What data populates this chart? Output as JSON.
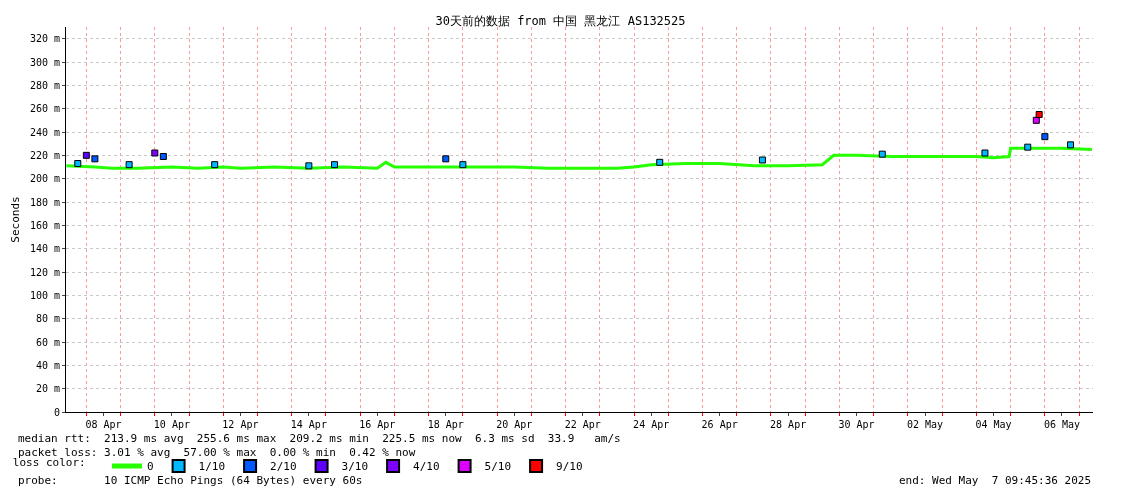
{
  "chart_data": {
    "type": "line",
    "title": "30天前的数据 from 中国 黑龙江 AS132525",
    "ylabel": "Seconds",
    "legend_title": "loss color:",
    "legend": "bottom",
    "grid": true,
    "line_style": "solid",
    "xlim": [
      "2025-04-07T09:45",
      "2025-05-07T09:45"
    ],
    "xticks": [
      {
        "value": "2025-04-08T00:00",
        "label": null
      },
      {
        "value": "2025-04-08T12:00",
        "label": "08 Apr"
      },
      {
        "value": "2025-04-09T00:00",
        "label": null
      },
      {
        "value": "2025-04-10T00:00",
        "label": null
      },
      {
        "value": "2025-04-10T12:00",
        "label": "10 Apr"
      },
      {
        "value": "2025-04-11T00:00",
        "label": null
      },
      {
        "value": "2025-04-12T00:00",
        "label": null
      },
      {
        "value": "2025-04-12T12:00",
        "label": "12 Apr"
      },
      {
        "value": "2025-04-13T00:00",
        "label": null
      },
      {
        "value": "2025-04-14T00:00",
        "label": null
      },
      {
        "value": "2025-04-14T12:00",
        "label": "14 Apr"
      },
      {
        "value": "2025-04-15T00:00",
        "label": null
      },
      {
        "value": "2025-04-16T00:00",
        "label": null
      },
      {
        "value": "2025-04-16T12:00",
        "label": "16 Apr"
      },
      {
        "value": "2025-04-17T00:00",
        "label": null
      },
      {
        "value": "2025-04-18T00:00",
        "label": null
      },
      {
        "value": "2025-04-18T12:00",
        "label": "18 Apr"
      },
      {
        "value": "2025-04-19T00:00",
        "label": null
      },
      {
        "value": "2025-04-20T00:00",
        "label": null
      },
      {
        "value": "2025-04-20T12:00",
        "label": "20 Apr"
      },
      {
        "value": "2025-04-21T00:00",
        "label": null
      },
      {
        "value": "2025-04-22T00:00",
        "label": null
      },
      {
        "value": "2025-04-22T12:00",
        "label": "22 Apr"
      },
      {
        "value": "2025-04-23T00:00",
        "label": null
      },
      {
        "value": "2025-04-24T00:00",
        "label": null
      },
      {
        "value": "2025-04-24T12:00",
        "label": "24 Apr"
      },
      {
        "value": "2025-04-25T00:00",
        "label": null
      },
      {
        "value": "2025-04-26T00:00",
        "label": null
      },
      {
        "value": "2025-04-26T12:00",
        "label": "26 Apr"
      },
      {
        "value": "2025-04-27T00:00",
        "label": null
      },
      {
        "value": "2025-04-28T00:00",
        "label": null
      },
      {
        "value": "2025-04-28T12:00",
        "label": "28 Apr"
      },
      {
        "value": "2025-04-29T00:00",
        "label": null
      },
      {
        "value": "2025-04-30T00:00",
        "label": null
      },
      {
        "value": "2025-04-30T12:00",
        "label": "30 Apr"
      },
      {
        "value": "2025-05-01T00:00",
        "label": null
      },
      {
        "value": "2025-05-02T00:00",
        "label": null
      },
      {
        "value": "2025-05-02T12:00",
        "label": "02 May"
      },
      {
        "value": "2025-05-03T00:00",
        "label": null
      },
      {
        "value": "2025-05-04T00:00",
        "label": null
      },
      {
        "value": "2025-05-04T12:00",
        "label": "04 May"
      },
      {
        "value": "2025-05-05T00:00",
        "label": null
      },
      {
        "value": "2025-05-06T00:00",
        "label": null
      },
      {
        "value": "2025-05-06T12:00",
        "label": "06 May"
      },
      {
        "value": "2025-05-07T00:00",
        "label": null
      }
    ],
    "ylim": [
      0,
      330
    ],
    "yticks": [
      0,
      {
        "value": 20,
        "label": "20 m"
      },
      {
        "value": 40,
        "label": "40 m"
      },
      {
        "value": 60,
        "label": "60 m"
      },
      {
        "value": 80,
        "label": "80 m"
      },
      {
        "value": 100,
        "label": "100 m"
      },
      {
        "value": 120,
        "label": "120 m"
      },
      {
        "value": 140,
        "label": "140 m"
      },
      {
        "value": 160,
        "label": "160 m"
      },
      {
        "value": 180,
        "label": "180 m"
      },
      {
        "value": 200,
        "label": "200 m"
      },
      {
        "value": 220,
        "label": "220 m"
      },
      {
        "value": 240,
        "label": "240 m"
      },
      {
        "value": 260,
        "label": "260 m"
      },
      {
        "value": 280,
        "label": "280 m"
      },
      {
        "value": 300,
        "label": "300 m"
      },
      {
        "value": 320,
        "label": "320 m"
      }
    ],
    "series": [
      {
        "name": "0",
        "color": "#26ff00",
        "x": [
          "2025-04-07T10:00",
          "2025-04-08T06:00",
          "2025-04-08T18:00",
          "2025-04-09T12:00",
          "2025-04-10T12:00",
          "2025-04-11T06:00",
          "2025-04-12T00:00",
          "2025-04-12T12:00",
          "2025-04-13T12:00",
          "2025-04-14T12:00",
          "2025-04-15T12:00",
          "2025-04-16T12:00",
          "2025-04-16T18:00",
          "2025-04-17T00:00",
          "2025-04-18T12:00",
          "2025-04-19T12:00",
          "2025-04-20T12:00",
          "2025-04-21T12:00",
          "2025-04-22T12:00",
          "2025-04-23T12:00",
          "2025-04-24T00:00",
          "2025-04-24T12:00",
          "2025-04-25T12:00",
          "2025-04-26T12:00",
          "2025-04-27T12:00",
          "2025-04-28T12:00",
          "2025-04-29T12:00",
          "2025-04-29T20:00",
          "2025-04-30T12:00",
          "2025-05-01T12:00",
          "2025-05-02T12:00",
          "2025-05-03T12:00",
          "2025-05-04T00:00",
          "2025-05-04T12:00",
          "2025-05-04T23:00",
          "2025-05-05T00:00",
          "2025-05-05T12:00",
          "2025-05-06T12:00",
          "2025-05-07T09:00"
        ],
        "values": [
          211,
          210,
          209,
          209,
          210,
          209,
          210,
          209,
          210,
          209,
          210,
          209,
          214,
          210,
          210,
          210,
          210,
          209,
          209,
          209,
          210,
          212,
          213,
          213,
          211,
          211,
          212,
          220,
          220,
          219,
          219,
          219,
          219,
          218,
          219,
          226,
          226,
          226,
          225
        ]
      },
      {
        "name": "1/10",
        "color": "#00b8ff",
        "type": "scatter",
        "marker": "square",
        "x": [
          "2025-04-07T18:00",
          "2025-04-09T06:00",
          "2025-04-11T18:00",
          "2025-04-14T12:00",
          "2025-04-15T06:00",
          "2025-04-19T00:00",
          "2025-04-24T18:00",
          "2025-04-27T18:00",
          "2025-05-01T06:00",
          "2025-05-04T06:00",
          "2025-05-05T12:00",
          "2025-05-06T18:00"
        ],
        "values": [
          213,
          212,
          212,
          211,
          212,
          212,
          214,
          216,
          221,
          222,
          227,
          229
        ]
      },
      {
        "name": "2/10",
        "color": "#0059ff",
        "type": "scatter",
        "marker": "square",
        "x": [
          "2025-04-08T06:00",
          "2025-04-10T06:00",
          "2025-04-18T12:00",
          "2025-05-06T00:00"
        ],
        "values": [
          217,
          219,
          217,
          236
        ]
      },
      {
        "name": "3/10",
        "color": "#5e00ff",
        "type": "scatter",
        "marker": "square",
        "x": [
          "2025-04-08T00:00"
        ],
        "values": [
          220
        ]
      },
      {
        "name": "4/10",
        "color": "#7e00ff",
        "type": "scatter",
        "marker": "square",
        "x": [
          "2025-04-10T00:00"
        ],
        "values": [
          222
        ]
      },
      {
        "name": "5/10",
        "color": "#dd00ff",
        "type": "scatter",
        "marker": "square",
        "x": [
          "2025-05-05T18:00"
        ],
        "values": [
          250
        ]
      },
      {
        "name": "9/10",
        "color": "#ff0000",
        "type": "scatter",
        "marker": "square",
        "x": [
          "2025-05-05T20:00"
        ],
        "values": [
          255
        ]
      }
    ],
    "annotations": [
      "median rtt:  213.9 ms avg  255.6 ms max  209.2 ms min  225.5 ms now  6.3 ms sd  33.9   am/s",
      "packet loss: 3.01 % avg  57.00 % max  0.00 % min  0.42 % now",
      "probe:       10 ICMP Echo Pings (64 Bytes) every 60s",
      "end: Wed May  7 09:45:36 2025"
    ]
  }
}
